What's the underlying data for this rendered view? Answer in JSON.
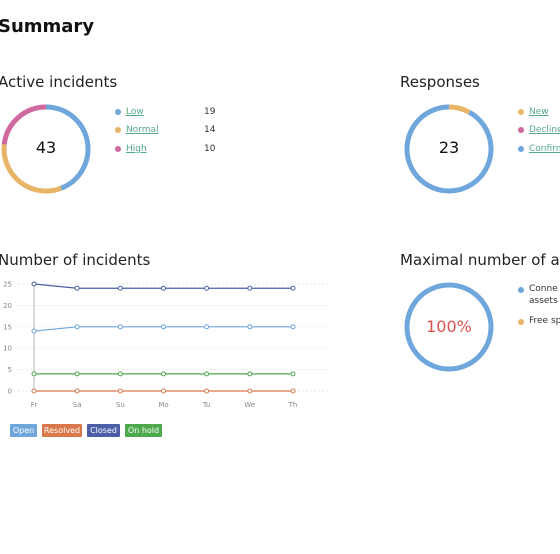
{
  "page": {
    "title": "Summary"
  },
  "colors": {
    "blue": "#6fa6dc",
    "orange": "#e8b468",
    "pink": "#d0699e",
    "navy": "#4a5fa6",
    "green": "#4ea84c",
    "red": "#d9784a",
    "percent_red": "#d9534f",
    "link_green": "#55a88a"
  },
  "active_incidents": {
    "title": "Active incidents",
    "total": "43",
    "items": [
      {
        "label": "Low",
        "value": 19,
        "color": "#6fa6dc"
      },
      {
        "label": "Normal",
        "value": 14,
        "color": "#e8b468"
      },
      {
        "label": "High",
        "value": 10,
        "color": "#d0699e"
      }
    ]
  },
  "responses": {
    "title": "Responses",
    "total": "23",
    "items": [
      {
        "label": "New",
        "color": "#e8b468"
      },
      {
        "label": "Decline",
        "color": "#d0699e"
      },
      {
        "label": "Confirm",
        "color": "#6fa6dc"
      }
    ],
    "ring_fraction": {
      "orange": 0.08,
      "blue": 0.92
    }
  },
  "assets": {
    "title": "Maximal number of ass",
    "center": "100%",
    "items": [
      {
        "label_line1": "Conne",
        "label_line2": "assets",
        "color": "#6fa6dc"
      },
      {
        "label_line1": "Free sp",
        "label_line2": "",
        "color": "#e8b468"
      }
    ],
    "ring_fraction": 1.0
  },
  "incidents_chart": {
    "title": "Number of incidents"
  },
  "chart_data": {
    "type": "line",
    "x": [
      "Fr",
      "Sa",
      "Su",
      "Mo",
      "Tu",
      "We",
      "Th"
    ],
    "ylim": [
      0,
      25
    ],
    "yticks": [
      "0",
      "5",
      "10",
      "15",
      "20",
      "25"
    ],
    "grid": true,
    "series": [
      {
        "name": "Open",
        "values": [
          14,
          15,
          15,
          15,
          15,
          15,
          15
        ],
        "color": "#6fa6dc"
      },
      {
        "name": "Resolved",
        "values": [
          0,
          0,
          0,
          0,
          0,
          0,
          0
        ],
        "color": "#d9784a"
      },
      {
        "name": "Closed",
        "values": [
          25,
          24,
          24,
          24,
          24,
          24,
          24
        ],
        "color": "#4a5fa6"
      },
      {
        "name": "On hold",
        "values": [
          4,
          4,
          4,
          4,
          4,
          4,
          4
        ],
        "color": "#4ea84c"
      }
    ],
    "legend": "bottom-left"
  }
}
